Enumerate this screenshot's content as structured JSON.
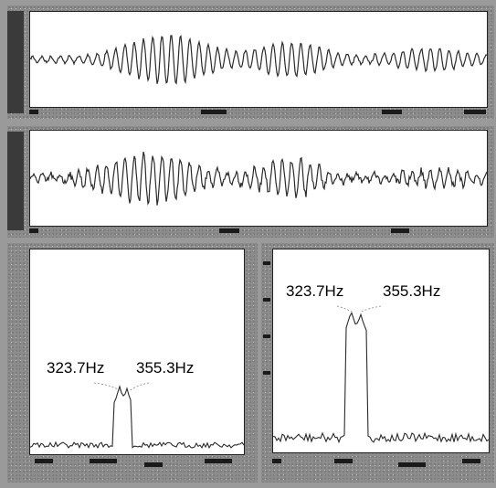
{
  "panels": {
    "waveform_top": {},
    "waveform_bottom": {},
    "spectrum_left": {
      "peak1_label": "323.7Hz",
      "peak2_label": "355.3Hz"
    },
    "spectrum_right": {
      "peak1_label": "323.7Hz",
      "peak2_label": "355.3Hz"
    }
  },
  "colors": {
    "trace": "#2b2b2b",
    "screen": "#ffffff",
    "frame": "#8c8c8c"
  }
}
